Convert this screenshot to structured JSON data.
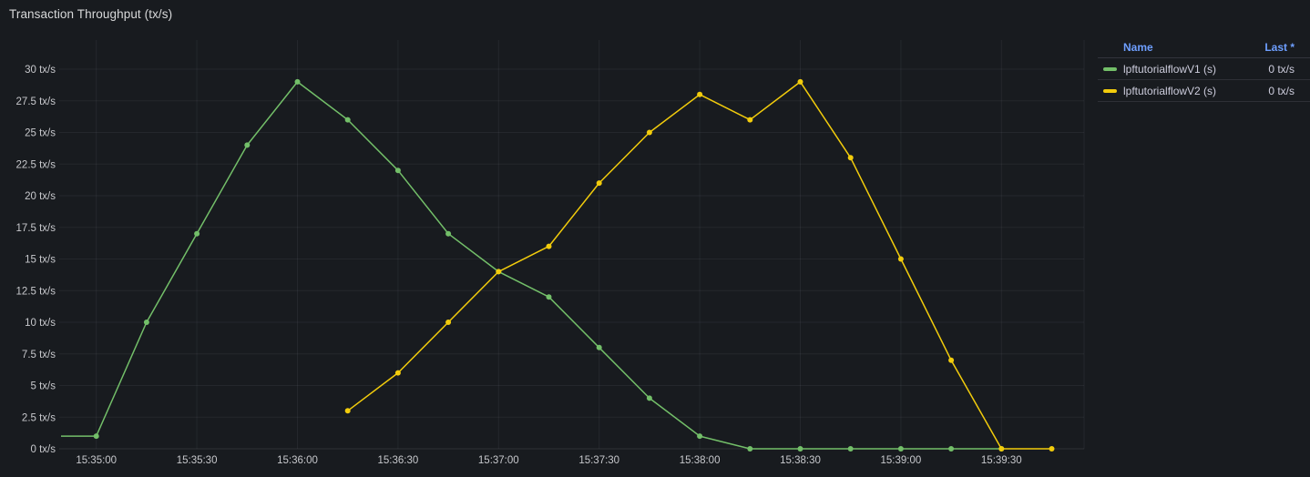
{
  "panel": {
    "title": "Transaction Throughput (tx/s)"
  },
  "colors": {
    "background": "#181b1f",
    "green": "#73bf69",
    "yellow": "#f2cc0c",
    "axis_text": "#c7c8cc",
    "grid": "rgba(204,204,220,0.07)",
    "zero_line": "rgba(204,204,220,0.12)",
    "legend_link": "#6e9fff"
  },
  "legend": {
    "headers": {
      "name": "Name",
      "last": "Last *"
    },
    "rows": [
      {
        "name": "lpftutorialflowV1 (s)",
        "last": "0 tx/s",
        "color": "#73bf69"
      },
      {
        "name": "lpftutorialflowV2 (s)",
        "last": "0 tx/s",
        "color": "#f2cc0c"
      }
    ]
  },
  "chart_data": {
    "type": "line",
    "title": "Transaction Throughput (tx/s)",
    "y_unit": "tx/s",
    "ylim": [
      0,
      30
    ],
    "grid": true,
    "legend_position": "right-table",
    "y_ticks": [
      {
        "v": 0,
        "label": "0 tx/s"
      },
      {
        "v": 2.5,
        "label": "2.5 tx/s"
      },
      {
        "v": 5,
        "label": "5 tx/s"
      },
      {
        "v": 7.5,
        "label": "7.5 tx/s"
      },
      {
        "v": 10,
        "label": "10 tx/s"
      },
      {
        "v": 12.5,
        "label": "12.5 tx/s"
      },
      {
        "v": 15,
        "label": "15 tx/s"
      },
      {
        "v": 17.5,
        "label": "17.5 tx/s"
      },
      {
        "v": 20,
        "label": "20 tx/s"
      },
      {
        "v": 22.5,
        "label": "22.5 tx/s"
      },
      {
        "v": 25,
        "label": "25 tx/s"
      },
      {
        "v": 27.5,
        "label": "27.5 tx/s"
      },
      {
        "v": 30,
        "label": "30 tx/s"
      }
    ],
    "x_ticks": [
      "15:35:00",
      "15:35:30",
      "15:36:00",
      "15:36:30",
      "15:37:00",
      "15:37:30",
      "15:38:00",
      "15:38:30",
      "15:39:00",
      "15:39:30"
    ],
    "series": [
      {
        "name": "lpftutorialflowV1 (s)",
        "color": "#73bf69",
        "last": "0 tx/s",
        "points": [
          {
            "t": "15:34:45",
            "v": 1
          },
          {
            "t": "15:35:00",
            "v": 1
          },
          {
            "t": "15:35:15",
            "v": 10
          },
          {
            "t": "15:35:30",
            "v": 17
          },
          {
            "t": "15:35:45",
            "v": 24
          },
          {
            "t": "15:36:00",
            "v": 29
          },
          {
            "t": "15:36:15",
            "v": 26
          },
          {
            "t": "15:36:30",
            "v": 22
          },
          {
            "t": "15:36:45",
            "v": 17
          },
          {
            "t": "15:37:00",
            "v": 14
          },
          {
            "t": "15:37:15",
            "v": 12
          },
          {
            "t": "15:37:30",
            "v": 8
          },
          {
            "t": "15:37:45",
            "v": 4
          },
          {
            "t": "15:38:00",
            "v": 1
          },
          {
            "t": "15:38:15",
            "v": 0
          },
          {
            "t": "15:38:30",
            "v": 0
          },
          {
            "t": "15:38:45",
            "v": 0
          },
          {
            "t": "15:39:00",
            "v": 0
          },
          {
            "t": "15:39:15",
            "v": 0
          },
          {
            "t": "15:39:30",
            "v": 0
          }
        ]
      },
      {
        "name": "lpftutorialflowV2 (s)",
        "color": "#f2cc0c",
        "last": "0 tx/s",
        "points": [
          {
            "t": "15:36:15",
            "v": 3
          },
          {
            "t": "15:36:30",
            "v": 6
          },
          {
            "t": "15:36:45",
            "v": 10
          },
          {
            "t": "15:37:00",
            "v": 14
          },
          {
            "t": "15:37:15",
            "v": 16
          },
          {
            "t": "15:37:30",
            "v": 21
          },
          {
            "t": "15:37:45",
            "v": 25
          },
          {
            "t": "15:38:00",
            "v": 28
          },
          {
            "t": "15:38:15",
            "v": 26
          },
          {
            "t": "15:38:30",
            "v": 29
          },
          {
            "t": "15:38:45",
            "v": 23
          },
          {
            "t": "15:39:00",
            "v": 15
          },
          {
            "t": "15:39:15",
            "v": 7
          },
          {
            "t": "15:39:30",
            "v": 0
          },
          {
            "t": "15:39:45",
            "v": 0
          }
        ]
      }
    ]
  }
}
